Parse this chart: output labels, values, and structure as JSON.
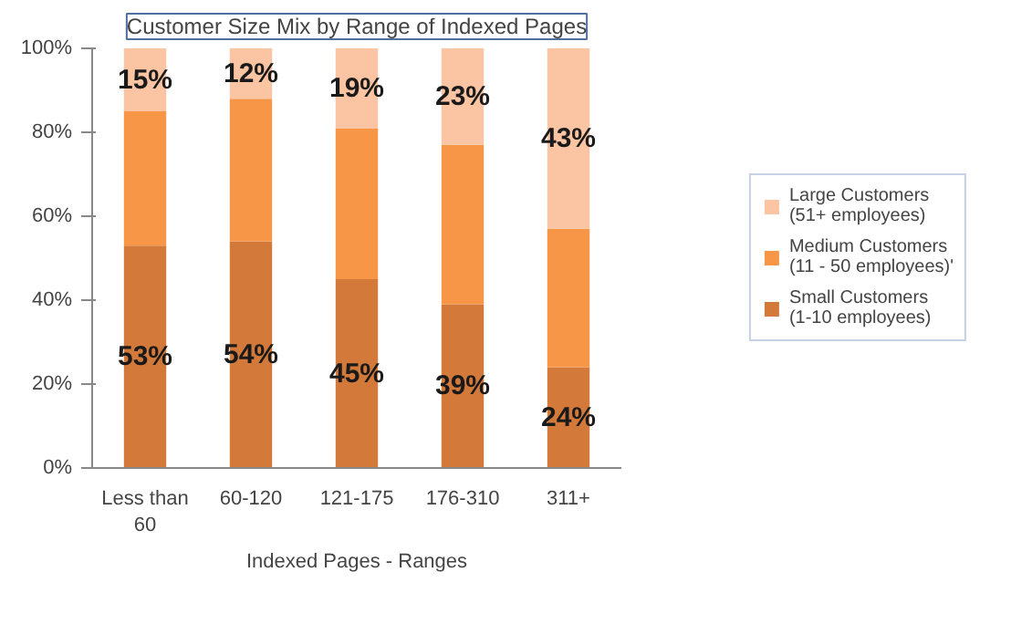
{
  "chart_data": {
    "type": "bar",
    "stacked": true,
    "title": "Customer Size Mix by Range of Indexed Pages",
    "xlabel": "Indexed Pages - Ranges",
    "categories": [
      "Less than 60",
      "60-120",
      "121-175",
      "176-310",
      "311+"
    ],
    "series": [
      {
        "name": "Small Customers (1-10 employees)",
        "color": "#d3793a",
        "values": [
          53,
          54,
          45,
          39,
          24
        ],
        "value_labels": [
          "53%",
          "54%",
          "45%",
          "39%",
          "24%"
        ]
      },
      {
        "name": "Medium Customers (11 - 50 employees)'",
        "color": "#f79646",
        "values": [
          32,
          34,
          36,
          38,
          33
        ]
      },
      {
        "name": "Large Customers (51+ employees)",
        "color": "#fbc4a2",
        "values": [
          15,
          12,
          19,
          23,
          43
        ],
        "value_labels": [
          "15%",
          "12%",
          "19%",
          "23%",
          "43%"
        ]
      }
    ],
    "ylim": [
      0,
      100
    ],
    "yticks": [
      {
        "value": 0,
        "label": "0%"
      },
      {
        "value": 20,
        "label": "20%"
      },
      {
        "value": 40,
        "label": "40%"
      },
      {
        "value": 60,
        "label": "60%"
      },
      {
        "value": 80,
        "label": "80%"
      },
      {
        "value": 100,
        "label": "100%"
      }
    ],
    "grid": false,
    "legend": "right"
  }
}
